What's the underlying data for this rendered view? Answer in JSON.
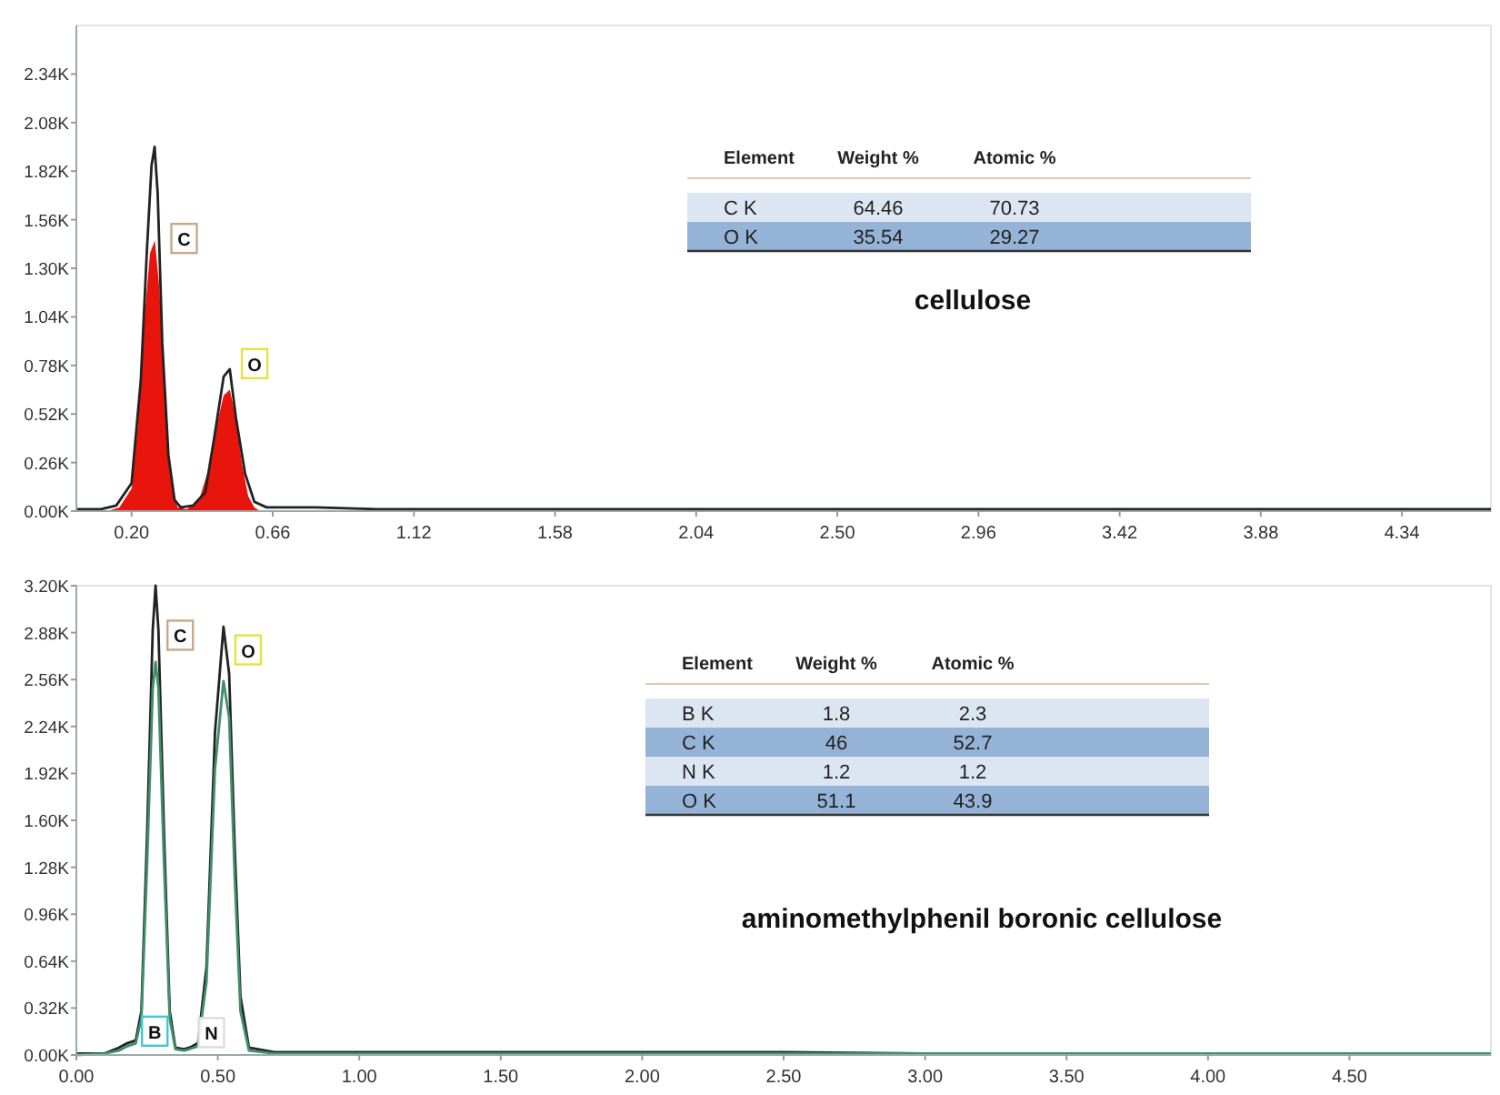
{
  "chart_data": [
    {
      "type": "area",
      "title": "cellulose",
      "xlim": [
        0.02,
        4.63
      ],
      "ylim": [
        0,
        2.6
      ],
      "xticks": [
        {
          "value": 0.2,
          "label": "0.20"
        },
        {
          "value": 0.66,
          "label": "0.66"
        },
        {
          "value": 1.12,
          "label": "1.12"
        },
        {
          "value": 1.58,
          "label": "1.58"
        },
        {
          "value": 2.04,
          "label": "2.04"
        },
        {
          "value": 2.5,
          "label": "2.50"
        },
        {
          "value": 2.96,
          "label": "2.96"
        },
        {
          "value": 3.42,
          "label": "3.42"
        },
        {
          "value": 3.88,
          "label": "3.88"
        },
        {
          "value": 4.34,
          "label": "4.34"
        }
      ],
      "yticks": [
        {
          "value": 0,
          "label": "0.00K"
        },
        {
          "value": 0.26,
          "label": "0.26K"
        },
        {
          "value": 0.52,
          "label": "0.52K"
        },
        {
          "value": 0.78,
          "label": "0.78K"
        },
        {
          "value": 1.04,
          "label": "1.04K"
        },
        {
          "value": 1.3,
          "label": "1.30K"
        },
        {
          "value": 1.56,
          "label": "1.56K"
        },
        {
          "value": 1.82,
          "label": "1.82K"
        },
        {
          "value": 2.08,
          "label": "2.08K"
        },
        {
          "value": 2.34,
          "label": "2.34K"
        }
      ],
      "series": [
        {
          "type": "area",
          "color": "#e8150c",
          "x": [
            0.12,
            0.16,
            0.2,
            0.22,
            0.24,
            0.26,
            0.276,
            0.29,
            0.31,
            0.33,
            0.35,
            0.38,
            0.42,
            0.45,
            0.48,
            0.5,
            0.52,
            0.54,
            0.56,
            0.58,
            0.6,
            0.62
          ],
          "values": [
            0,
            0.02,
            0.12,
            0.45,
            1.0,
            1.38,
            1.45,
            1.2,
            0.55,
            0.15,
            0.02,
            0.01,
            0.06,
            0.22,
            0.48,
            0.62,
            0.65,
            0.5,
            0.25,
            0.08,
            0.02,
            0
          ]
        },
        {
          "type": "line",
          "color": "#222222",
          "x": [
            0.02,
            0.1,
            0.15,
            0.2,
            0.23,
            0.25,
            0.265,
            0.275,
            0.285,
            0.3,
            0.32,
            0.34,
            0.36,
            0.4,
            0.44,
            0.47,
            0.5,
            0.52,
            0.54,
            0.57,
            0.6,
            0.64,
            0.8,
            1.0,
            1.5,
            2.0,
            2.5,
            3.0,
            3.5,
            4.0,
            4.63
          ],
          "values": [
            0.01,
            0.01,
            0.03,
            0.15,
            0.7,
            1.4,
            1.85,
            1.95,
            1.7,
            0.9,
            0.3,
            0.06,
            0.02,
            0.03,
            0.1,
            0.4,
            0.72,
            0.76,
            0.5,
            0.2,
            0.05,
            0.02,
            0.02,
            0.01,
            0.01,
            0.01,
            0.01,
            0.01,
            0.01,
            0.01,
            0.01
          ]
        }
      ],
      "annotations": [
        {
          "text": "C",
          "x": 0.3,
          "y": 1.45
        },
        {
          "text": "O",
          "x": 0.53,
          "y": 0.78
        },
        "Element",
        "Weight %",
        "Atomic %",
        "C K",
        "64.46",
        "70.73",
        "O K",
        "35.54",
        "29.27"
      ]
    },
    {
      "type": "line",
      "title": "aminomethylphenil boronic cellulose",
      "xlim": [
        0,
        5.0
      ],
      "ylim": [
        0,
        3.2
      ],
      "xticks": [
        {
          "value": 0,
          "label": "0.00"
        },
        {
          "value": 0.5,
          "label": "0.50"
        },
        {
          "value": 1,
          "label": "1.00"
        },
        {
          "value": 1.5,
          "label": "1.50"
        },
        {
          "value": 2,
          "label": "2.00"
        },
        {
          "value": 2.5,
          "label": "2.50"
        },
        {
          "value": 3,
          "label": "3.00"
        },
        {
          "value": 3.5,
          "label": "3.50"
        },
        {
          "value": 4,
          "label": "4.00"
        },
        {
          "value": 4.5,
          "label": "4.50"
        }
      ],
      "yticks": [
        {
          "value": 0,
          "label": "0.00K"
        },
        {
          "value": 0.32,
          "label": "0.32K"
        },
        {
          "value": 0.64,
          "label": "0.64K"
        },
        {
          "value": 0.96,
          "label": "0.96K"
        },
        {
          "value": 1.28,
          "label": "1.28K"
        },
        {
          "value": 1.6,
          "label": "1.60K"
        },
        {
          "value": 1.92,
          "label": "1.92K"
        },
        {
          "value": 2.24,
          "label": "2.24K"
        },
        {
          "value": 2.56,
          "label": "2.56K"
        },
        {
          "value": 2.88,
          "label": "2.88K"
        },
        {
          "value": 3.2,
          "label": "3.20K"
        }
      ],
      "series": [
        {
          "color": "#222222",
          "x": [
            0,
            0.1,
            0.15,
            0.18,
            0.21,
            0.23,
            0.25,
            0.27,
            0.28,
            0.29,
            0.31,
            0.33,
            0.35,
            0.38,
            0.4,
            0.43,
            0.46,
            0.49,
            0.52,
            0.54,
            0.56,
            0.58,
            0.61,
            0.7,
            1.0,
            1.5,
            2.0,
            2.5,
            3.0,
            3.5,
            4.0,
            4.5,
            5.0
          ],
          "values": [
            0.01,
            0.01,
            0.05,
            0.08,
            0.1,
            0.3,
            1.5,
            2.9,
            3.2,
            2.9,
            1.5,
            0.3,
            0.05,
            0.04,
            0.05,
            0.08,
            0.6,
            2.2,
            2.92,
            2.6,
            1.4,
            0.4,
            0.05,
            0.02,
            0.02,
            0.02,
            0.02,
            0.02,
            0.01,
            0.01,
            0.01,
            0.01,
            0.01
          ]
        },
        {
          "color": "#3f8f6a",
          "x": [
            0,
            0.1,
            0.15,
            0.18,
            0.21,
            0.23,
            0.25,
            0.27,
            0.28,
            0.29,
            0.31,
            0.33,
            0.35,
            0.38,
            0.4,
            0.43,
            0.46,
            0.49,
            0.52,
            0.54,
            0.56,
            0.58,
            0.61,
            0.7,
            1.0,
            5.0
          ],
          "values": [
            0,
            0.01,
            0.03,
            0.06,
            0.08,
            0.25,
            1.3,
            2.5,
            2.68,
            2.5,
            1.3,
            0.25,
            0.04,
            0.03,
            0.04,
            0.06,
            0.5,
            1.95,
            2.55,
            2.3,
            1.2,
            0.3,
            0.03,
            0.01,
            0.01,
            0.01
          ]
        }
      ],
      "annotations": [
        {
          "text": "C",
          "x": 0.29,
          "y": 2.85
        },
        {
          "text": "O",
          "x": 0.53,
          "y": 2.75
        },
        {
          "text": "B",
          "x": 0.2,
          "y": 0.15
        },
        {
          "text": "N",
          "x": 0.4,
          "y": 0.14
        },
        "Element",
        "Weight %",
        "Atomic %",
        "B K",
        "1.8",
        "2.3",
        "C K",
        "46",
        "52.7",
        "N K",
        "1.2",
        "1.2",
        "O K",
        "51.1",
        "43.9"
      ]
    }
  ]
}
